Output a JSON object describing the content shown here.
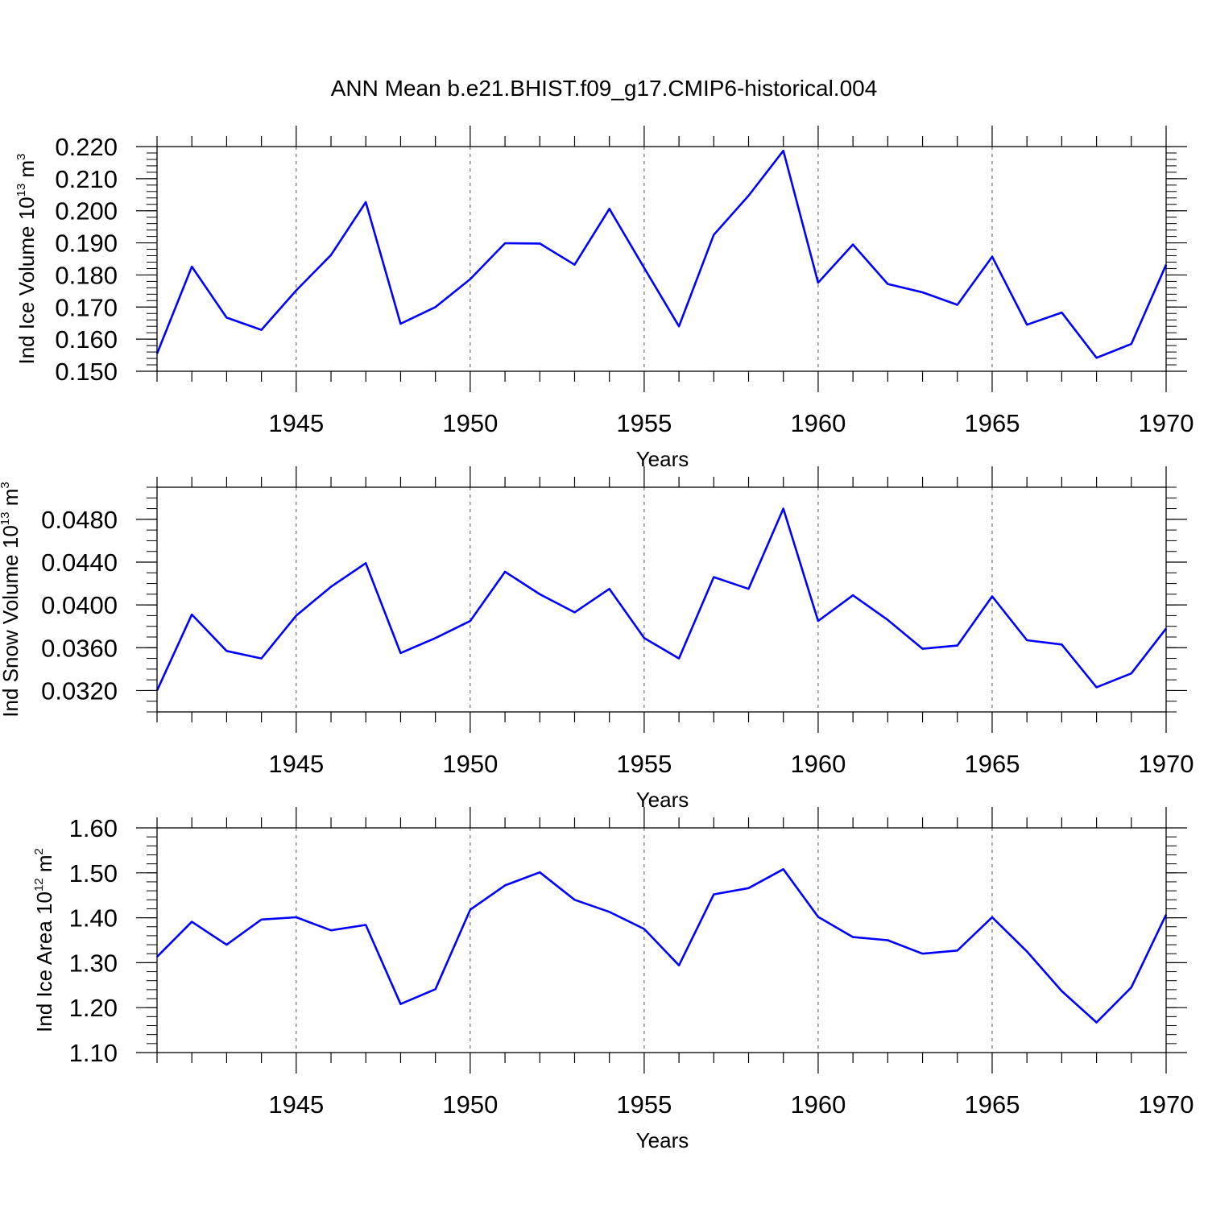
{
  "title": "ANN Mean b.e21.BHIST.f09_g17.CMIP6-historical.004",
  "colors": {
    "line": "#0000ff",
    "axis": "#000000",
    "grid": "#555555",
    "background": "#ffffff"
  },
  "chart_data": [
    {
      "type": "line",
      "title": "ANN Mean b.e21.BHIST.f09_g17.CMIP6-historical.004",
      "xlabel": "Years",
      "ylabel": {
        "prefix": "Ind Ice Volume 10",
        "exp": "13",
        "unit": " m",
        "unit_exp": "3"
      },
      "xlim": [
        1941,
        1970
      ],
      "ylim": [
        0.15,
        0.22
      ],
      "xticks": [
        1945,
        1950,
        1955,
        1960,
        1965,
        1970
      ],
      "yticks": [
        "0.150",
        "0.160",
        "0.170",
        "0.180",
        "0.190",
        "0.200",
        "0.210",
        "0.220"
      ],
      "y_major_step": 0.01,
      "y_minor_step": 0.002,
      "grid": "vertical dashed at major x ticks",
      "x": [
        1941,
        1942,
        1943,
        1944,
        1945,
        1946,
        1947,
        1948,
        1949,
        1950,
        1951,
        1952,
        1953,
        1954,
        1955,
        1956,
        1957,
        1958,
        1959,
        1960,
        1961,
        1962,
        1963,
        1964,
        1965,
        1966,
        1967,
        1968,
        1969,
        1970
      ],
      "series": [
        {
          "name": "Ind Ice Volume",
          "values": [
            0.1555,
            0.1826,
            0.1667,
            0.1629,
            0.1752,
            0.1862,
            0.2027,
            0.1648,
            0.17,
            0.1787,
            0.1899,
            0.1898,
            0.1832,
            0.2006,
            0.1822,
            0.164,
            0.1925,
            0.2047,
            0.2187,
            0.1776,
            0.1895,
            0.1772,
            0.1746,
            0.1707,
            0.1857,
            0.1645,
            0.1683,
            0.1542,
            0.1585,
            0.1832
          ]
        }
      ]
    },
    {
      "type": "line",
      "xlabel": "Years",
      "ylabel": {
        "prefix": "Ind Snow Volume 10",
        "exp": "13",
        "unit": " m",
        "unit_exp": "3"
      },
      "xlim": [
        1941,
        1970
      ],
      "ylim": [
        0.03,
        0.051
      ],
      "xticks": [
        1945,
        1950,
        1955,
        1960,
        1965,
        1970
      ],
      "yticks": [
        "0.0320",
        "0.0360",
        "0.0400",
        "0.0440",
        "0.0480"
      ],
      "y_major_step": 0.004,
      "y_minor_step": 0.001,
      "grid": "vertical dashed at major x ticks",
      "x": [
        1941,
        1942,
        1943,
        1944,
        1945,
        1946,
        1947,
        1948,
        1949,
        1950,
        1951,
        1952,
        1953,
        1954,
        1955,
        1956,
        1957,
        1958,
        1959,
        1960,
        1961,
        1962,
        1963,
        1964,
        1965,
        1966,
        1967,
        1968,
        1969,
        1970
      ],
      "series": [
        {
          "name": "Ind Snow Volume",
          "values": [
            0.032,
            0.0391,
            0.0357,
            0.035,
            0.039,
            0.0417,
            0.0439,
            0.0355,
            0.0369,
            0.0385,
            0.0431,
            0.041,
            0.0393,
            0.0415,
            0.0369,
            0.035,
            0.0426,
            0.0415,
            0.049,
            0.0385,
            0.0409,
            0.0386,
            0.0359,
            0.0362,
            0.0408,
            0.0367,
            0.0363,
            0.0323,
            0.0336,
            0.0378
          ]
        }
      ]
    },
    {
      "type": "line",
      "xlabel": "Years",
      "ylabel": {
        "prefix": "Ind Ice Area 10",
        "exp": "12",
        "unit": " m",
        "unit_exp": "2"
      },
      "xlim": [
        1941,
        1970
      ],
      "ylim": [
        1.1,
        1.6
      ],
      "xticks": [
        1945,
        1950,
        1955,
        1960,
        1965,
        1970
      ],
      "yticks": [
        "1.10",
        "1.20",
        "1.30",
        "1.40",
        "1.50",
        "1.60"
      ],
      "y_major_step": 0.1,
      "y_minor_step": 0.02,
      "grid": "vertical dashed at major x ticks",
      "x": [
        1941,
        1942,
        1943,
        1944,
        1945,
        1946,
        1947,
        1948,
        1949,
        1950,
        1951,
        1952,
        1953,
        1954,
        1955,
        1956,
        1957,
        1958,
        1959,
        1960,
        1961,
        1962,
        1963,
        1964,
        1965,
        1966,
        1967,
        1968,
        1969,
        1970
      ],
      "series": [
        {
          "name": "Ind Ice Area",
          "values": [
            1.313,
            1.391,
            1.34,
            1.396,
            1.401,
            1.372,
            1.384,
            1.208,
            1.241,
            1.418,
            1.472,
            1.501,
            1.44,
            1.413,
            1.375,
            1.294,
            1.452,
            1.466,
            1.508,
            1.402,
            1.357,
            1.35,
            1.32,
            1.327,
            1.401,
            1.325,
            1.237,
            1.167,
            1.245,
            1.407
          ]
        }
      ]
    }
  ]
}
